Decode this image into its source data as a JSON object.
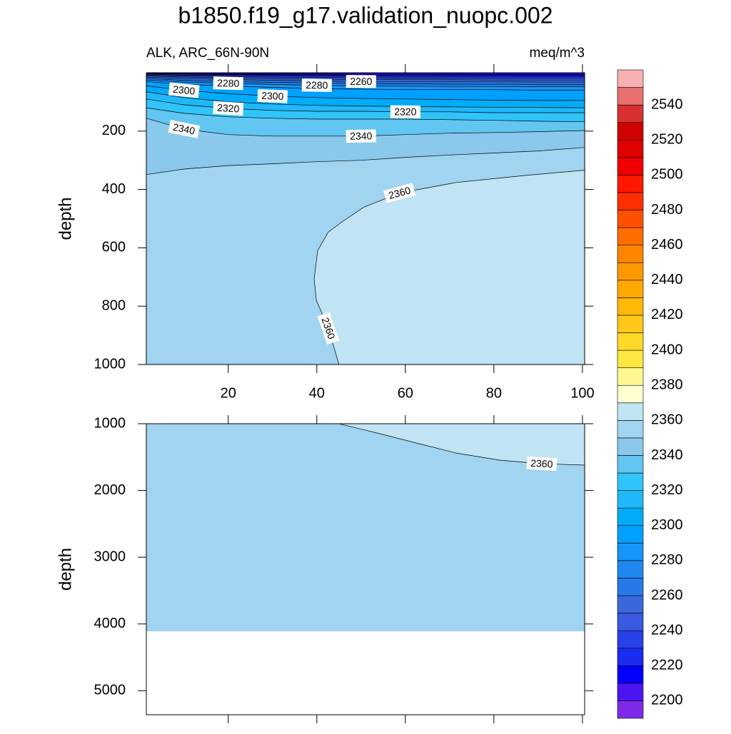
{
  "chart_data": {
    "type": "contour",
    "title": "b1850.f19_g17.validation_nuopc.002",
    "subtitle_left": "ALK, ARC_66N-90N",
    "subtitle_right": "meq/m^3",
    "colorbar": {
      "levels": [
        2200,
        2210,
        2220,
        2230,
        2240,
        2250,
        2260,
        2270,
        2280,
        2290,
        2300,
        2310,
        2320,
        2330,
        2340,
        2350,
        2360,
        2370,
        2380,
        2390,
        2400,
        2410,
        2420,
        2430,
        2440,
        2450,
        2460,
        2470,
        2480,
        2490,
        2500,
        2510,
        2520,
        2530,
        2540,
        2550
      ],
      "colors": [
        "#7f2ae8",
        "#4d14f2",
        "#0000ff",
        "#1a2cf0",
        "#2a40e8",
        "#3a58e0",
        "#3a68dc",
        "#2a78e8",
        "#1e88f0",
        "#1496f8",
        "#00a0ff",
        "#00acf8",
        "#20b8f8",
        "#30c4f8",
        "#62c6f2",
        "#8ac8ec",
        "#a0d4f0",
        "#c0e4f4",
        "#ffffd0",
        "#fff890",
        "#ffe840",
        "#ffd828",
        "#ffc818",
        "#ffb808",
        "#ffa800",
        "#ff9800",
        "#ff8400",
        "#ff6c00",
        "#ff5000",
        "#ff3000",
        "#ff1800",
        "#f00000",
        "#e00000",
        "#d00000",
        "#d83030",
        "#e87070",
        "#f8b0b0"
      ],
      "ticks": [
        2200,
        2220,
        2240,
        2260,
        2280,
        2300,
        2320,
        2340,
        2360,
        2380,
        2400,
        2420,
        2440,
        2460,
        2480,
        2500,
        2520,
        2540
      ]
    },
    "panels": [
      {
        "ylabel": "depth",
        "xlim": [
          1.5,
          100.5
        ],
        "ylim": [
          0,
          1000
        ],
        "y_reversed": true,
        "xticks": [
          20,
          40,
          60,
          80,
          100
        ],
        "yticks": [
          200,
          400,
          600,
          800,
          1000
        ],
        "show_xtick_labels": true,
        "background_level": 2350,
        "data_depth_max": 1000,
        "contours": [
          {
            "level": 2360,
            "x": [
              45,
              42.6,
              39.9,
              39.4,
              40.2,
              42.6,
              45.8,
              50.6,
              58.7,
              71.5,
              87.6,
              100.5
            ],
            "depth": [
              1000,
              876,
              780,
              707,
              610,
              546,
              510,
              461,
              412,
              376,
              351,
              334
            ],
            "fill": {
              "level": 2360,
              "toward": "bottom-right"
            },
            "label_vertices": [
              1,
              8
            ]
          },
          {
            "level": 2350,
            "x": [
              1.5,
              10,
              20,
              30,
              40,
              50,
              60,
              70,
              80,
              90,
              100.5
            ],
            "depth": [
              349,
              330,
              318,
              312,
              305,
              300,
              290,
              282,
              275,
              268,
              256
            ],
            "fill": {
              "level": 2340,
              "toward": "top"
            },
            "label_vertices": []
          },
          {
            "level": 2340,
            "x": [
              1.5,
              10,
              20,
              30,
              40,
              50,
              60,
              70,
              80,
              90,
              100.5
            ],
            "depth": [
              156,
              193,
              212,
              217,
              217,
              217,
              212,
              207,
              205,
              202,
              198
            ],
            "fill": {
              "level": 2330,
              "toward": "top"
            },
            "label_vertices": [
              1,
              5
            ]
          },
          {
            "level": 2330,
            "x": [
              1.5,
              10,
              20,
              30,
              40,
              50,
              60,
              70,
              80,
              90,
              100.5
            ],
            "depth": [
              120,
              139,
              151,
              156,
              159,
              159,
              159,
              161,
              163,
              166,
              168
            ],
            "fill": {
              "level": 2320,
              "toward": "top"
            },
            "label_vertices": []
          },
          {
            "level": 2320,
            "x": [
              1.5,
              10,
              20,
              30,
              40,
              50,
              60,
              70,
              80,
              90,
              100.5
            ],
            "depth": [
              90,
              110,
              122,
              129,
              132,
              132,
              134,
              134,
              137,
              137,
              137
            ],
            "fill": {
              "level": 2310,
              "toward": "top"
            },
            "label_vertices": [
              2,
              6
            ]
          },
          {
            "level": 2310,
            "x": [
              1.5,
              10,
              20,
              30,
              40,
              50,
              60,
              70,
              80,
              90,
              100.5
            ],
            "depth": [
              65,
              85,
              100,
              107,
              112,
              114,
              116,
              117,
              118,
              119,
              120
            ],
            "fill": {
              "level": 2300,
              "toward": "top"
            },
            "label_vertices": []
          },
          {
            "level": 2300,
            "x": [
              1.5,
              10,
              20,
              30,
              40,
              50,
              60,
              70,
              80,
              90,
              100.5
            ],
            "depth": [
              45,
              60,
              72,
              80,
              85,
              88,
              90,
              92,
              94,
              95,
              95
            ],
            "fill": {
              "level": 2290,
              "toward": "top"
            },
            "label_vertices": [
              1,
              3
            ]
          },
          {
            "level": 2290,
            "x": [
              1.5,
              10,
              20,
              30,
              40,
              50,
              60,
              70,
              80,
              90,
              100.5
            ],
            "depth": [
              30,
              40,
              45,
              50,
              55,
              56,
              58,
              58,
              58,
              60,
              60
            ],
            "fill": {
              "level": 2280,
              "toward": "top"
            },
            "label_vertices": []
          },
          {
            "level": 2280,
            "x": [
              1.5,
              10,
              20,
              30,
              40,
              50,
              60,
              70,
              80,
              90,
              100.5
            ],
            "depth": [
              25,
              32,
              36,
              40,
              43,
              45,
              46,
              47,
              47,
              48,
              48
            ],
            "fill": {
              "level": 2270,
              "toward": "top"
            },
            "label_vertices": [
              2,
              4
            ]
          },
          {
            "level": 2270,
            "x": [
              1.5,
              10,
              20,
              30,
              40,
              50,
              60,
              70,
              80,
              90,
              100.5
            ],
            "depth": [
              20,
              26,
              30,
              33,
              35,
              37,
              38,
              39,
              39,
              40,
              40
            ],
            "fill": {
              "level": 2260,
              "toward": "top"
            },
            "label_vertices": []
          },
          {
            "level": 2260,
            "x": [
              1.5,
              10,
              20,
              30,
              40,
              50,
              60,
              70,
              80,
              90,
              100.5
            ],
            "depth": [
              15,
              20,
              23,
              26,
              28,
              30,
              30,
              31,
              31,
              32,
              32
            ],
            "fill": {
              "level": 2250,
              "toward": "top"
            },
            "label_vertices": [
              5
            ]
          },
          {
            "level": 2250,
            "x": [
              1.5,
              10,
              20,
              30,
              40,
              50,
              60,
              70,
              80,
              90,
              100.5
            ],
            "depth": [
              11,
              15,
              18,
              20,
              22,
              23,
              24,
              24,
              25,
              25,
              25
            ],
            "fill": {
              "level": 2240,
              "toward": "top"
            },
            "label_vertices": []
          },
          {
            "level": 2240,
            "x": [
              1.5,
              10,
              20,
              30,
              40,
              50,
              60,
              70,
              80,
              90,
              100.5
            ],
            "depth": [
              8,
              11,
              13,
              15,
              16,
              17,
              18,
              18,
              19,
              19,
              19
            ],
            "fill": {
              "level": 2230,
              "toward": "top"
            },
            "label_vertices": []
          },
          {
            "level": 2230,
            "x": [
              1.5,
              10,
              20,
              30,
              40,
              50,
              60,
              70,
              80,
              90,
              100.5
            ],
            "depth": [
              5,
              8,
              9,
              10,
              11,
              12,
              13,
              13,
              13,
              14,
              14
            ],
            "fill": {
              "level": 2220,
              "toward": "top"
            },
            "label_vertices": []
          },
          {
            "level": 2220,
            "x": [
              1.5,
              10,
              20,
              30,
              40,
              50,
              60,
              70,
              80,
              90,
              100.5
            ],
            "depth": [
              3,
              5,
              6,
              7,
              7,
              8,
              8,
              9,
              9,
              9,
              9
            ],
            "fill": {
              "level": 2210,
              "toward": "top"
            },
            "label_vertices": []
          },
          {
            "level": 2210,
            "x": [
              1.5,
              10,
              20,
              30,
              40,
              50,
              60,
              70,
              80,
              90,
              100.5
            ],
            "depth": [
              1.5,
              3,
              3.5,
              4,
              4,
              4.5,
              5,
              5,
              5,
              5,
              5
            ],
            "fill": {
              "level": 2200,
              "toward": "top"
            },
            "label_vertices": []
          }
        ]
      },
      {
        "ylabel": "depth",
        "xlim": [
          1.5,
          100.5
        ],
        "ylim": [
          1000,
          5360
        ],
        "y_reversed": true,
        "xticks": [
          20,
          40,
          60,
          80,
          100
        ],
        "yticks": [
          1000,
          2000,
          3000,
          4000,
          5000
        ],
        "show_xtick_labels": false,
        "background_level": 2350,
        "data_depth_max": 4110,
        "contours": [
          {
            "level": 2360,
            "x": [
              45,
              52.3,
              65.1,
              71.5,
              81.2,
              90.8,
              100.5
            ],
            "depth": [
              1000,
              1118,
              1332,
              1439,
              1545,
              1599,
              1620
            ],
            "fill": {
              "level": 2360,
              "toward": "top-right"
            },
            "label_vertices": [
              5
            ]
          }
        ]
      }
    ]
  }
}
